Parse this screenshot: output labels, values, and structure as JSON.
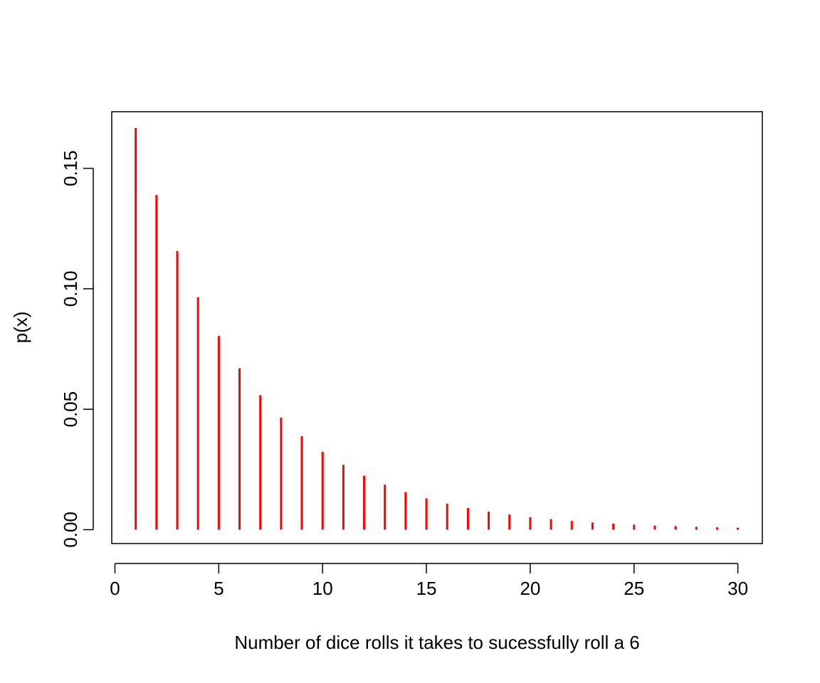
{
  "chart_data": {
    "type": "bar",
    "style": "spike",
    "title": "",
    "xlabel": "Number of dice rolls it takes to sucessfully roll a 6",
    "ylabel": "p(x)",
    "xlim": [
      0,
      30
    ],
    "ylim": [
      0,
      0.167
    ],
    "x_ticks": [
      0,
      5,
      10,
      15,
      20,
      25,
      30
    ],
    "x_tick_labels": [
      "0",
      "5",
      "10",
      "15",
      "20",
      "25",
      "30"
    ],
    "y_ticks": [
      0,
      0.05,
      0.1,
      0.15
    ],
    "y_tick_labels": [
      "0.00",
      "0.05",
      "0.10",
      "0.15"
    ],
    "grid": false,
    "legend": "none",
    "x": [
      1,
      2,
      3,
      4,
      5,
      6,
      7,
      8,
      9,
      10,
      11,
      12,
      13,
      14,
      15,
      16,
      17,
      18,
      19,
      20,
      21,
      22,
      23,
      24,
      25,
      26,
      27,
      28,
      29,
      30
    ],
    "values": [
      0.1667,
      0.1389,
      0.1157,
      0.0965,
      0.0804,
      0.067,
      0.0558,
      0.0465,
      0.0388,
      0.0323,
      0.0269,
      0.0224,
      0.0187,
      0.0156,
      0.013,
      0.0108,
      0.009,
      0.0075,
      0.0063,
      0.0052,
      0.0044,
      0.0036,
      0.003,
      0.0025,
      0.0021,
      0.0017,
      0.0015,
      0.0012,
      0.001,
      0.0008
    ],
    "color": "#ff0000"
  }
}
